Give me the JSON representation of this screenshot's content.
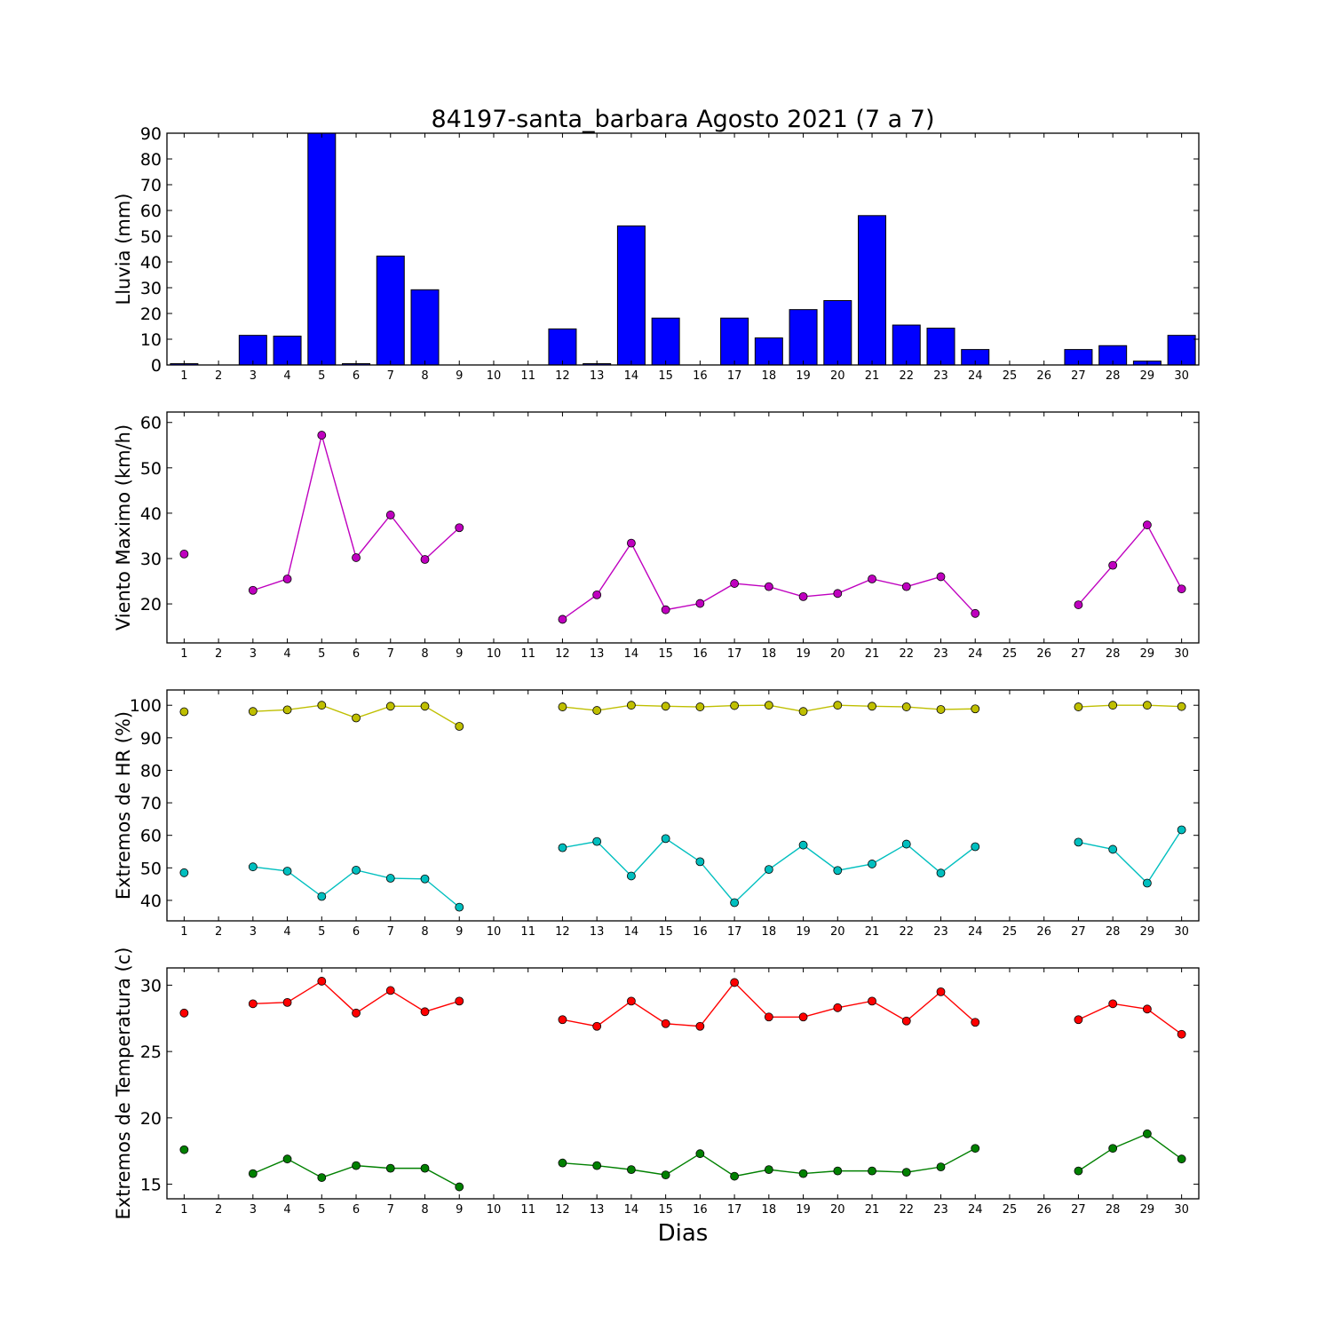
{
  "title": "84197-santa_barbara Agosto 2021  (7 a 7)",
  "xlabel": "Dias",
  "colors": {
    "bar": "#0000ff",
    "wind": "#bf00bf",
    "hr_max": "#bfbf00",
    "hr_min": "#00bfbf",
    "temp_max": "#ff0000",
    "temp_min": "#008000"
  },
  "chart_data": [
    {
      "type": "bar",
      "ylabel": "Lluvia (mm)",
      "ylim": [
        0,
        90
      ],
      "yticks": [
        0,
        10,
        20,
        30,
        40,
        50,
        60,
        70,
        80,
        90
      ],
      "categories": [
        1,
        2,
        3,
        4,
        5,
        6,
        7,
        8,
        9,
        10,
        11,
        12,
        13,
        14,
        15,
        16,
        17,
        18,
        19,
        20,
        21,
        22,
        23,
        24,
        25,
        26,
        27,
        28,
        29,
        30
      ],
      "values": [
        0.5,
        0,
        11.5,
        11.2,
        90,
        0.5,
        42.3,
        29.2,
        0,
        0,
        0,
        14,
        0.5,
        54,
        18.2,
        0,
        18.2,
        10.5,
        21.5,
        25,
        58,
        15.5,
        14.3,
        6,
        0,
        0,
        6,
        7.5,
        1.5,
        11.5
      ]
    },
    {
      "type": "line",
      "ylabel": "Viento Maximo (km/h)",
      "ylim": [
        11.4,
        62.3
      ],
      "yticks": [
        20,
        30,
        40,
        50,
        60
      ],
      "x": [
        1,
        2,
        3,
        4,
        5,
        6,
        7,
        8,
        9,
        10,
        11,
        12,
        13,
        14,
        15,
        16,
        17,
        18,
        19,
        20,
        21,
        22,
        23,
        24,
        25,
        26,
        27,
        28,
        29,
        30
      ],
      "series": [
        {
          "values": [
            31,
            null,
            23,
            25.5,
            57.2,
            30.2,
            39.6,
            29.8,
            36.8,
            null,
            null,
            16.6,
            22,
            33.4,
            18.7,
            20.1,
            24.5,
            23.8,
            21.6,
            22.3,
            25.5,
            23.8,
            26,
            17.9,
            null,
            null,
            19.8,
            28.5,
            37.4,
            23.3
          ]
        }
      ]
    },
    {
      "type": "line",
      "ylabel": "Extremos de HR (%)",
      "ylim": [
        33.7,
        104.7
      ],
      "yticks": [
        40,
        50,
        60,
        70,
        80,
        90,
        100
      ],
      "x": [
        1,
        2,
        3,
        4,
        5,
        6,
        7,
        8,
        9,
        10,
        11,
        12,
        13,
        14,
        15,
        16,
        17,
        18,
        19,
        20,
        21,
        22,
        23,
        24,
        25,
        26,
        27,
        28,
        29,
        30
      ],
      "series": [
        {
          "values": [
            98,
            null,
            98.1,
            98.6,
            100,
            96.1,
            99.7,
            99.7,
            93.5,
            null,
            null,
            99.5,
            98.4,
            100,
            99.7,
            99.5,
            99.9,
            100,
            98.1,
            100,
            99.7,
            99.5,
            98.7,
            98.9,
            null,
            null,
            99.5,
            100,
            100,
            99.6
          ]
        },
        {
          "values": [
            48.5,
            null,
            50.3,
            49,
            41.2,
            49.3,
            46.8,
            46.6,
            37.9,
            null,
            null,
            56.2,
            58.1,
            47.5,
            59,
            51.9,
            39.3,
            49.5,
            57,
            49.2,
            51.2,
            57.3,
            48.4,
            56.5,
            null,
            null,
            57.9,
            55.7,
            45.3,
            61.7
          ]
        }
      ]
    },
    {
      "type": "line",
      "ylabel": "Extremos de Temperatura (c)",
      "ylim": [
        13.9,
        31.3
      ],
      "yticks": [
        15,
        20,
        25,
        30
      ],
      "x": [
        1,
        2,
        3,
        4,
        5,
        6,
        7,
        8,
        9,
        10,
        11,
        12,
        13,
        14,
        15,
        16,
        17,
        18,
        19,
        20,
        21,
        22,
        23,
        24,
        25,
        26,
        27,
        28,
        29,
        30
      ],
      "series": [
        {
          "values": [
            27.9,
            null,
            28.6,
            28.7,
            30.3,
            27.9,
            29.6,
            28,
            28.8,
            null,
            null,
            27.4,
            26.9,
            28.8,
            27.1,
            26.9,
            30.2,
            27.6,
            27.6,
            28.3,
            28.8,
            27.3,
            29.5,
            27.2,
            null,
            null,
            27.4,
            28.6,
            28.2,
            26.3
          ]
        },
        {
          "values": [
            17.6,
            null,
            15.8,
            16.9,
            15.5,
            16.4,
            16.2,
            16.2,
            14.8,
            null,
            null,
            16.6,
            16.4,
            16.1,
            15.7,
            17.3,
            15.6,
            16.1,
            15.8,
            16,
            16,
            15.9,
            16.3,
            17.7,
            null,
            null,
            16,
            17.7,
            18.8,
            16.9
          ]
        }
      ]
    }
  ]
}
